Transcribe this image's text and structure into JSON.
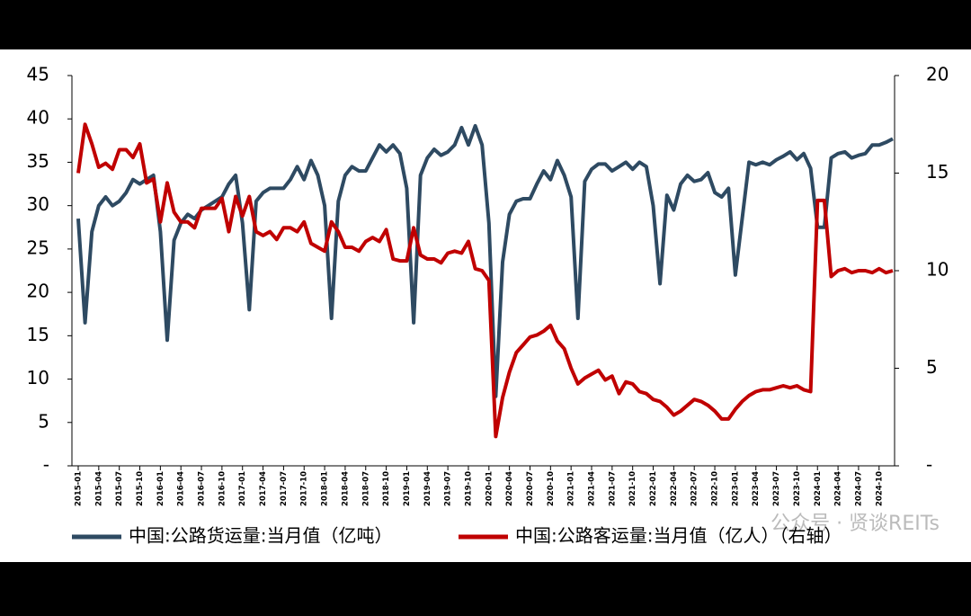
{
  "chart_data": {
    "type": "line",
    "x": [
      "2015-01",
      null,
      null,
      "2015-04",
      null,
      null,
      "2015-07",
      null,
      null,
      "2015-10",
      null,
      null,
      "2016-01",
      null,
      null,
      "2016-04",
      null,
      null,
      "2016-07",
      null,
      null,
      "2016-10",
      null,
      null,
      "2017-01",
      null,
      null,
      "2017-04",
      null,
      null,
      "2017-07",
      null,
      null,
      "2017-10",
      null,
      null,
      "2018-01",
      null,
      null,
      "2018-04",
      null,
      null,
      "2018-07",
      null,
      null,
      "2018-10",
      null,
      null,
      "2019-01",
      null,
      null,
      "2019-04",
      null,
      null,
      "2019-07",
      null,
      null,
      "2019-10",
      null,
      null,
      "2020-01",
      null,
      null,
      "2020-04",
      null,
      null,
      "2020-07",
      null,
      null,
      "2020-10",
      null,
      null,
      "2021-01",
      null,
      null,
      "2021-04",
      null,
      null,
      "2021-07",
      null,
      null,
      "2021-10",
      null,
      null,
      "2022-01",
      null,
      null,
      "2022-04",
      null,
      null,
      "2022-07",
      null,
      null,
      "2022-10",
      null,
      null,
      "2023-01",
      null,
      null,
      "2023-04",
      null,
      null,
      "2023-07",
      null,
      null,
      "2023-10",
      null,
      null,
      "2024-01",
      null,
      null,
      "2024-04",
      null,
      null,
      "2024-07",
      null,
      null,
      "2024-10",
      null,
      null
    ],
    "series": [
      {
        "name": "中国:公路货运量:当月值（亿吨）",
        "color": "#2e4a62",
        "axis": "y",
        "values": [
          28.5,
          16.5,
          27,
          30,
          31,
          30,
          30.5,
          31.5,
          33,
          32.5,
          33,
          33.5,
          27,
          14.5,
          26,
          28,
          29,
          28.5,
          29.5,
          30,
          30.5,
          31,
          32.5,
          33.5,
          28,
          18,
          30.5,
          31.5,
          32,
          32,
          32,
          33,
          34.5,
          33,
          35.2,
          33.5,
          30,
          17,
          30.5,
          33.5,
          34.5,
          34,
          34,
          35.5,
          37,
          36.2,
          37,
          36,
          32,
          16.5,
          33.5,
          35.5,
          36.5,
          35.8,
          36.2,
          37,
          39,
          37,
          39.2,
          37,
          28,
          8,
          23.5,
          29,
          30.5,
          30.8,
          30.8,
          32.5,
          34,
          33,
          35.2,
          33.5,
          31,
          17,
          32.8,
          34.2,
          34.8,
          34.8,
          34,
          34.5,
          35,
          34.2,
          35,
          34.5,
          30,
          21,
          31.2,
          29.5,
          32.5,
          33.5,
          32.8,
          33,
          33.8,
          31.5,
          31,
          32,
          22,
          28.5,
          35,
          34.7,
          35,
          34.7,
          35.3,
          35.7,
          36.2,
          35.3,
          36,
          34.3,
          27.5,
          27.5,
          35.5,
          36,
          36.2,
          35.5,
          35.8,
          36,
          37,
          37,
          37.3,
          37.7
        ]
      },
      {
        "name": "中国:公路客运量:当月值（亿人）（右轴）",
        "color": "#c00000",
        "axis": "y2",
        "values": [
          15,
          17.5,
          16.5,
          15.3,
          15.5,
          15.2,
          16.2,
          16.2,
          15.8,
          16.5,
          14.5,
          14.7,
          12.5,
          14.5,
          13,
          12.5,
          12.5,
          12.2,
          13.2,
          13.2,
          13.2,
          13.7,
          12,
          13.8,
          12.8,
          13.8,
          12,
          11.8,
          12,
          11.6,
          12.2,
          12.2,
          12,
          12.5,
          11.4,
          11.2,
          11,
          12.5,
          12,
          11.2,
          11.2,
          11,
          11.5,
          11.7,
          11.5,
          12.1,
          10.6,
          10.5,
          10.5,
          12.2,
          10.8,
          10.6,
          10.6,
          10.4,
          10.9,
          11,
          10.9,
          11.5,
          10.1,
          10,
          9.5,
          1.5,
          3.5,
          4.8,
          5.8,
          6.2,
          6.6,
          6.7,
          6.9,
          7.2,
          6.4,
          6,
          5,
          4.2,
          4.5,
          4.7,
          4.9,
          4.4,
          4.6,
          3.7,
          4.3,
          4.2,
          3.8,
          3.7,
          3.4,
          3.3,
          3,
          2.6,
          2.8,
          3.1,
          3.4,
          3.3,
          3.1,
          2.8,
          2.4,
          2.4,
          2.9,
          3.3,
          3.6,
          3.8,
          3.9,
          3.9,
          4,
          4.1,
          4,
          4.1,
          3.9,
          3.8,
          13.6,
          13.6,
          9.7,
          10,
          10.1,
          9.9,
          10,
          10,
          9.9,
          10.1,
          9.9,
          10
        ]
      }
    ],
    "ylim": [
      0,
      45
    ],
    "yticks": [
      {
        "value": 0,
        "label": "-"
      },
      5,
      10,
      15,
      20,
      25,
      30,
      35,
      40,
      45
    ],
    "y2lim": [
      0,
      20
    ],
    "y2ticks": [
      {
        "value": 0,
        "label": "-"
      },
      5,
      10,
      15,
      20
    ],
    "watermark": "公众号 · 贤谈REITs"
  }
}
